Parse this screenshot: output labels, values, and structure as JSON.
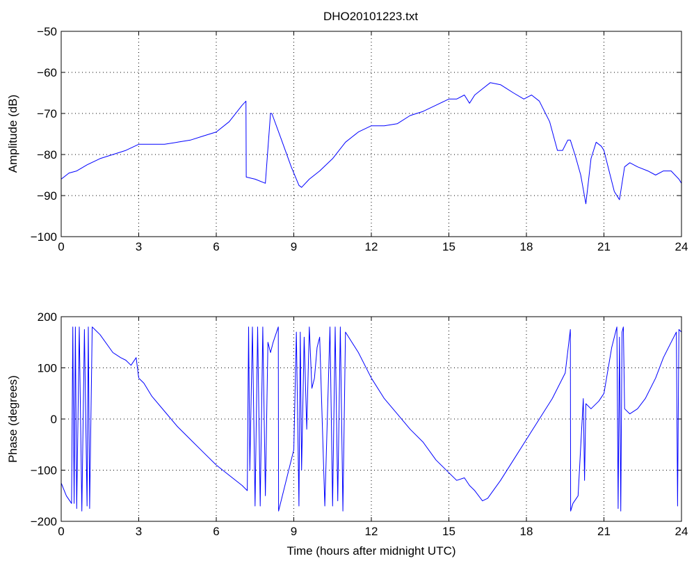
{
  "title": "DHO20101223.txt",
  "colors": {
    "trace": "#0000ff",
    "axes": "#000000",
    "background": "#ffffff"
  },
  "chart_data": [
    {
      "type": "line",
      "title": "DHO20101223.txt",
      "xlabel": "",
      "ylabel": "Amplitude (dB)",
      "xlim": [
        0,
        24
      ],
      "ylim": [
        -100,
        -50
      ],
      "xticks": [
        0,
        3,
        6,
        9,
        12,
        15,
        18,
        21,
        24
      ],
      "yticks": [
        -100,
        -90,
        -80,
        -70,
        -60,
        -50
      ],
      "grid": true,
      "series": [
        {
          "x": [
            0,
            0.3,
            0.6,
            1.0,
            1.5,
            2.0,
            2.5,
            3.0,
            3.5,
            4.0,
            4.5,
            5.0,
            5.5,
            6.0,
            6.5,
            7.0,
            7.15,
            7.16,
            7.5,
            7.9,
            8.1,
            8.15,
            8.5,
            8.9,
            9.2,
            9.3,
            9.6,
            10.0,
            10.5,
            11.0,
            11.5,
            12.0,
            12.5,
            13.0,
            13.5,
            14.0,
            14.5,
            15.0,
            15.3,
            15.6,
            15.8,
            16.0,
            16.3,
            16.6,
            17.0,
            17.5,
            17.9,
            18.2,
            18.5,
            18.9,
            19.2,
            19.4,
            19.6,
            19.7,
            19.9,
            20.1,
            20.3,
            20.5,
            20.7,
            20.9,
            21.0,
            21.2,
            21.4,
            21.6,
            21.8,
            22.0,
            22.3,
            22.7,
            23.0,
            23.3,
            23.6,
            23.9,
            24.0
          ],
          "y": [
            -86,
            -84.5,
            -84,
            -82.5,
            -81,
            -80,
            -79,
            -77.5,
            -77.5,
            -77.5,
            -77,
            -76.5,
            -75.5,
            -74.5,
            -72,
            -68,
            -67,
            -85.5,
            -86,
            -87,
            -70,
            -70,
            -76,
            -83,
            -87.5,
            -88,
            -86,
            -84,
            -81,
            -77,
            -74.5,
            -73,
            -73,
            -72.5,
            -70.5,
            -69.5,
            -68,
            -66.5,
            -66.5,
            -65.5,
            -67.5,
            -65.5,
            -64,
            -62.5,
            -63,
            -65,
            -66.5,
            -65.5,
            -67,
            -72,
            -79,
            -79,
            -76.5,
            -76.5,
            -80.5,
            -85,
            -92,
            -81,
            -77,
            -78,
            -79,
            -84,
            -89,
            -91,
            -83,
            -82,
            -83,
            -84,
            -85,
            -84,
            -84,
            -86,
            -87
          ]
        }
      ]
    },
    {
      "type": "line",
      "title": "",
      "xlabel": "Time (hours after midnight UTC)",
      "ylabel": "Phase (degrees)",
      "xlim": [
        0,
        24
      ],
      "ylim": [
        -200,
        200
      ],
      "xticks": [
        0,
        3,
        6,
        9,
        12,
        15,
        18,
        21,
        24
      ],
      "yticks": [
        -200,
        -100,
        0,
        100,
        200
      ],
      "grid": true,
      "series": [
        {
          "x": [
            0,
            0.2,
            0.4,
            0.45,
            0.5,
            0.55,
            0.6,
            0.7,
            0.8,
            0.9,
            1.0,
            1.05,
            1.1,
            1.2,
            1.3,
            1.5,
            2.0,
            2.3,
            2.5,
            2.7,
            2.9,
            3.0,
            3.1,
            3.2,
            3.5,
            4.0,
            4.5,
            5.0,
            5.5,
            6.0,
            6.5,
            7.0,
            7.2,
            7.25,
            7.3,
            7.4,
            7.5,
            7.6,
            7.7,
            7.8,
            7.9,
            8.0,
            8.1,
            8.2,
            8.4,
            8.41,
            9.0,
            9.1,
            9.2,
            9.25,
            9.3,
            9.4,
            9.5,
            9.6,
            9.7,
            9.8,
            9.9,
            10.0,
            10.2,
            10.4,
            10.5,
            10.6,
            10.7,
            10.8,
            10.9,
            11.0,
            11.5,
            12.0,
            12.5,
            13.0,
            13.5,
            14.0,
            14.5,
            15.0,
            15.3,
            15.6,
            15.8,
            16.0,
            16.3,
            16.5,
            17.0,
            17.5,
            18.0,
            18.5,
            19.0,
            19.5,
            19.7,
            19.71,
            19.8,
            20.0,
            20.2,
            20.25,
            20.3,
            20.5,
            20.8,
            21.0,
            21.3,
            21.5,
            21.55,
            21.6,
            21.65,
            21.7,
            21.75,
            21.8,
            22.0,
            22.3,
            22.6,
            23.0,
            23.3,
            23.6,
            23.8,
            23.85,
            23.9,
            24.0
          ],
          "y": [
            -125,
            -150,
            -165,
            180,
            -165,
            180,
            -175,
            180,
            -180,
            175,
            -170,
            180,
            -175,
            180,
            175,
            165,
            130,
            120,
            115,
            105,
            120,
            80,
            75,
            70,
            45,
            15,
            -15,
            -40,
            -65,
            -90,
            -110,
            -130,
            -140,
            180,
            -100,
            180,
            -170,
            180,
            -170,
            180,
            -150,
            150,
            130,
            150,
            180,
            -180,
            -60,
            170,
            -170,
            170,
            -100,
            160,
            -20,
            180,
            60,
            80,
            140,
            160,
            -170,
            180,
            -170,
            180,
            -160,
            180,
            -180,
            170,
            130,
            80,
            40,
            10,
            -20,
            -45,
            -80,
            -105,
            -120,
            -115,
            -130,
            -140,
            -160,
            -155,
            -120,
            -80,
            -40,
            0,
            40,
            90,
            175,
            -180,
            -165,
            -150,
            40,
            -120,
            30,
            20,
            35,
            50,
            140,
            180,
            -175,
            160,
            -180,
            170,
            180,
            20,
            10,
            20,
            40,
            80,
            120,
            150,
            170,
            -170,
            175,
            170
          ]
        }
      ]
    }
  ]
}
